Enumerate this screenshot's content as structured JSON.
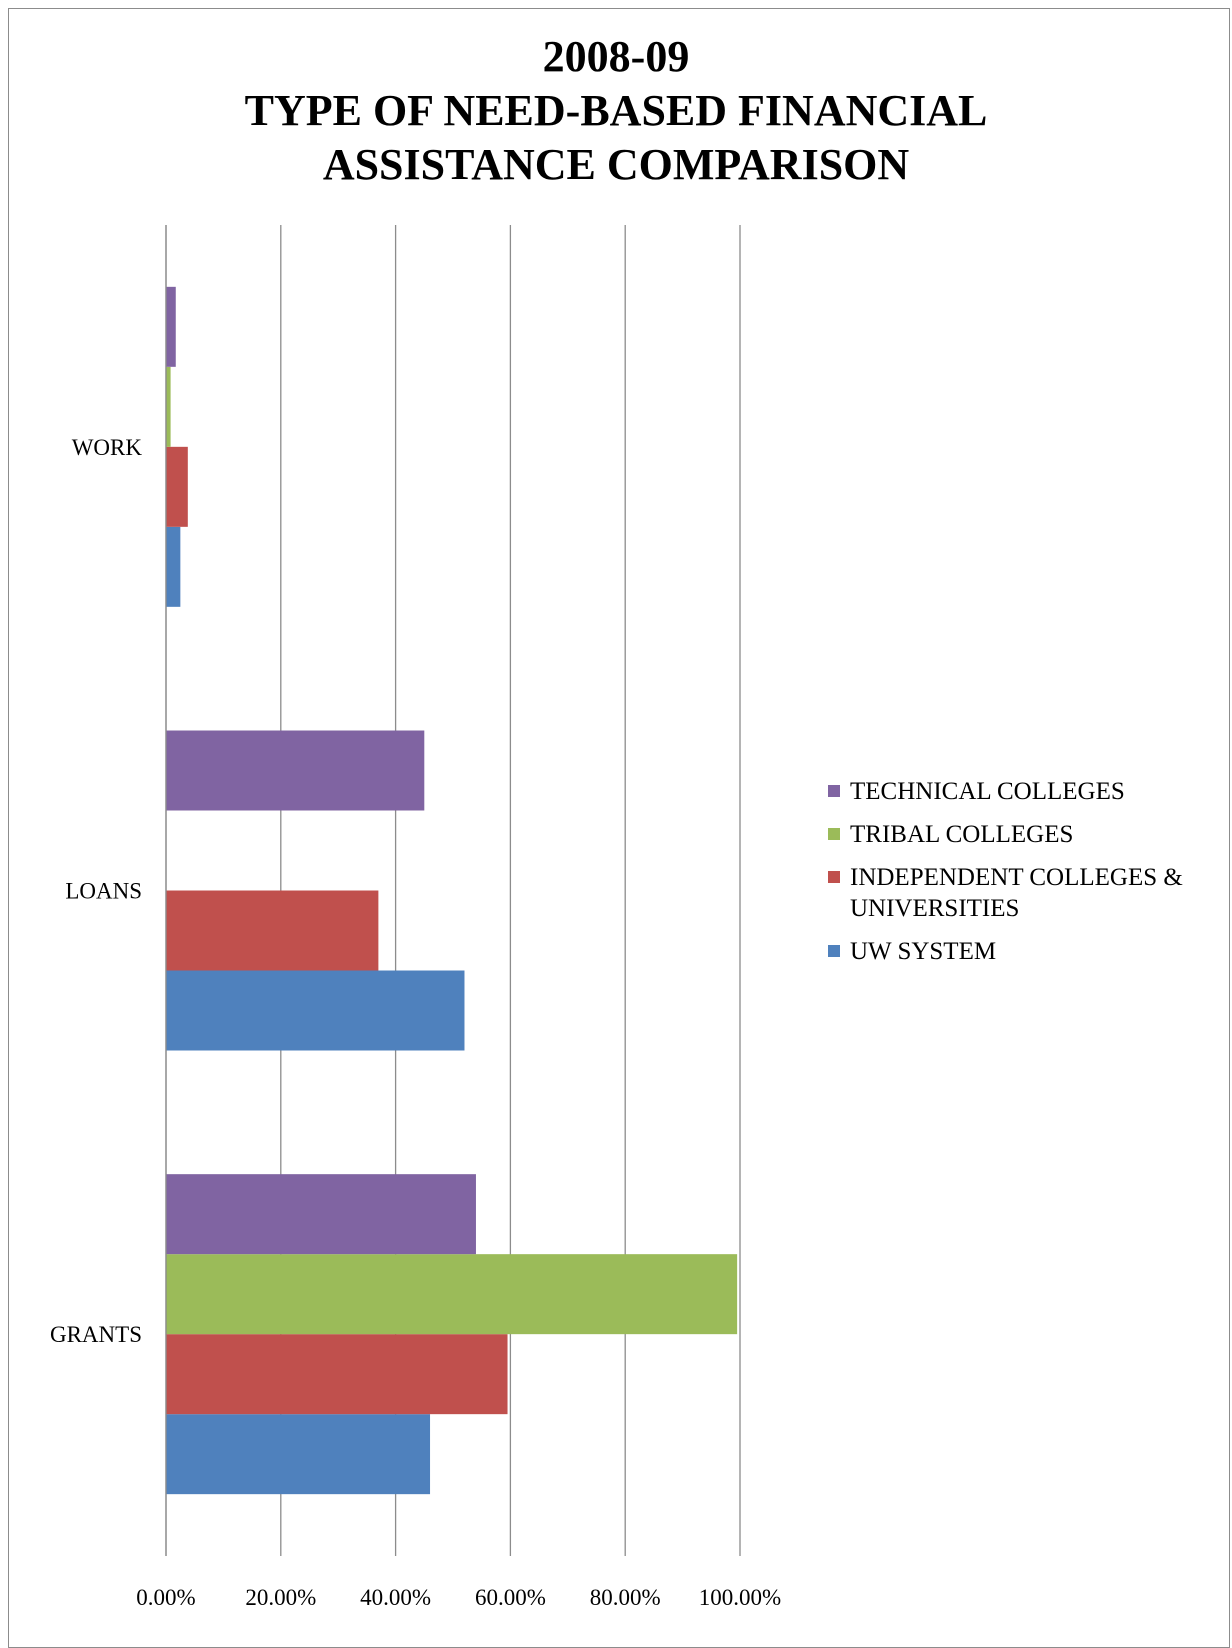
{
  "chart_data": {
    "type": "bar",
    "orientation": "horizontal",
    "title": [
      "2008-09",
      "TYPE OF NEED-BASED FINANCIAL",
      "ASSISTANCE COMPARISON"
    ],
    "categories": [
      "GRANTS",
      "LOANS",
      "WORK"
    ],
    "series": [
      {
        "name": "UW SYSTEM",
        "color": "#4f81bd",
        "values": [
          0.46,
          0.52,
          0.025
        ]
      },
      {
        "name": "INDEPENDENT COLLEGES & UNIVERSITIES",
        "color": "#c0504d",
        "values": [
          0.595,
          0.37,
          0.038
        ]
      },
      {
        "name": "TRIBAL COLLEGES",
        "color": "#9bbb59",
        "values": [
          0.995,
          0.0,
          0.008
        ]
      },
      {
        "name": "TECHNICAL COLLEGES",
        "color": "#8064a2",
        "values": [
          0.54,
          0.45,
          0.017
        ]
      }
    ],
    "xlim": [
      0,
      1
    ],
    "xticks": [
      "0.00%",
      "20.00%",
      "40.00%",
      "60.00%",
      "80.00%",
      "100.00%"
    ],
    "grid": true,
    "legend_position": "right",
    "legend_order": [
      "TECHNICAL COLLEGES",
      "TRIBAL COLLEGES",
      "INDEPENDENT COLLEGES & UNIVERSITIES",
      "UW SYSTEM"
    ]
  }
}
